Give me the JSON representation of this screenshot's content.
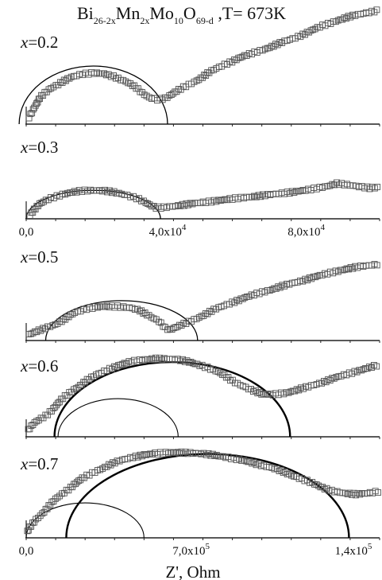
{
  "chart_data": {
    "type": "scatter",
    "title": {
      "parts": [
        {
          "t": "Bi",
          "s": false
        },
        {
          "t": "26-2x",
          "s": true
        },
        {
          "t": "Mn",
          "s": false
        },
        {
          "t": "2x",
          "s": true
        },
        {
          "t": "Mo",
          "s": false
        },
        {
          "t": "10",
          "s": true
        },
        {
          "t": "O",
          "s": false
        },
        {
          "t": "69-d",
          "s": true
        },
        {
          "t": " ,T= 673K",
          "s": false
        }
      ]
    },
    "xlabel": "Z', Ohm",
    "x_ticks": [
      {
        "value": 0,
        "label": "0,0"
      },
      {
        "value": 40000,
        "label": "4,0x10"
      },
      {
        "value": 80000,
        "label": "8,0x10"
      }
    ],
    "x_ticks_bottom": [
      {
        "value": 0,
        "label": "0,0"
      },
      {
        "value": 70000,
        "label": "7,0x10"
      },
      {
        "value": 140000,
        "label": "1,4x10"
      }
    ],
    "tick_exponent": "4",
    "tick_exponent_large": "5",
    "marker": "open-square",
    "panels": [
      {
        "label": "x=0.2",
        "var": "x",
        "val": "=0.2",
        "xlim": [
          0,
          100000
        ],
        "ylim": [
          0,
          42000
        ],
        "arcs": [
          {
            "c": 19000,
            "r": 21000,
            "off": 0,
            "w": 1.3
          }
        ],
        "points": [
          [
            800,
            2500
          ],
          [
            2000,
            6000
          ],
          [
            4000,
            9500
          ],
          [
            7000,
            13000
          ],
          [
            10000,
            15300
          ],
          [
            13000,
            17000
          ],
          [
            16000,
            18100
          ],
          [
            19000,
            18500
          ],
          [
            22000,
            18200
          ],
          [
            25000,
            17200
          ],
          [
            28000,
            15400
          ],
          [
            31000,
            13200
          ],
          [
            33000,
            11300
          ],
          [
            35000,
            9600
          ],
          [
            37000,
            8900
          ],
          [
            39000,
            9300
          ],
          [
            41000,
            10700
          ],
          [
            44000,
            12800
          ],
          [
            48000,
            15700
          ],
          [
            52000,
            18800
          ],
          [
            56000,
            21500
          ],
          [
            60000,
            23800
          ],
          [
            64000,
            25600
          ],
          [
            68000,
            27400
          ],
          [
            72000,
            29300
          ],
          [
            76000,
            31200
          ],
          [
            80000,
            33400
          ],
          [
            84000,
            35600
          ],
          [
            88000,
            37500
          ],
          [
            92000,
            39000
          ],
          [
            96000,
            40200
          ],
          [
            99000,
            41000
          ]
        ]
      },
      {
        "label": "x=0.3",
        "var": "x",
        "val": "=0.3",
        "xlim": [
          0,
          100000
        ],
        "ylim": [
          0,
          42000
        ],
        "arcs": [
          {
            "c": 19000,
            "r": 19000,
            "off": 0,
            "w": 1.3
          }
        ],
        "points": [
          [
            800,
            2500
          ],
          [
            2000,
            6000
          ],
          [
            4000,
            10000
          ],
          [
            7000,
            13800
          ],
          [
            10000,
            16200
          ],
          [
            13000,
            17800
          ],
          [
            16000,
            18700
          ],
          [
            19000,
            19000
          ],
          [
            22000,
            18700
          ],
          [
            25000,
            17800
          ],
          [
            28000,
            16200
          ],
          [
            31000,
            13800
          ],
          [
            33000,
            11600
          ],
          [
            35000,
            9300
          ],
          [
            37000,
            7400
          ],
          [
            39000,
            7600
          ],
          [
            42000,
            8500
          ],
          [
            46000,
            9800
          ],
          [
            50000,
            11000
          ],
          [
            55000,
            12400
          ],
          [
            60000,
            13800
          ],
          [
            65000,
            15000
          ],
          [
            70000,
            16400
          ],
          [
            75000,
            17800
          ],
          [
            80000,
            19400
          ],
          [
            85000,
            21800
          ],
          [
            88000,
            23600
          ],
          [
            91000,
            22800
          ],
          [
            94000,
            21500
          ],
          [
            97000,
            20600
          ],
          [
            99500,
            21000
          ]
        ]
      },
      {
        "label": "x=0.5",
        "var": "x",
        "val": "=0.5",
        "xlim": [
          0,
          100000
        ],
        "ylim": [
          0,
          42000
        ],
        "arcs": [
          {
            "c": 27000,
            "r": 21500,
            "off": 0,
            "w": 1.3
          }
        ],
        "points": [
          [
            500,
            3200
          ],
          [
            2500,
            4600
          ],
          [
            5000,
            6200
          ],
          [
            8000,
            8600
          ],
          [
            11000,
            11800
          ],
          [
            14000,
            15000
          ],
          [
            17000,
            17100
          ],
          [
            20000,
            18100
          ],
          [
            23000,
            18400
          ],
          [
            26000,
            18300
          ],
          [
            29000,
            17700
          ],
          [
            32000,
            16200
          ],
          [
            35000,
            13400
          ],
          [
            37500,
            10400
          ],
          [
            39000,
            6800
          ],
          [
            40500,
            5800
          ],
          [
            43000,
            7500
          ],
          [
            46000,
            10000
          ],
          [
            50000,
            13600
          ],
          [
            54000,
            17200
          ],
          [
            58000,
            20400
          ],
          [
            62000,
            23100
          ],
          [
            66000,
            25600
          ],
          [
            70000,
            27900
          ],
          [
            74000,
            30100
          ],
          [
            78000,
            32300
          ],
          [
            82000,
            34400
          ],
          [
            86000,
            36500
          ],
          [
            90000,
            38300
          ],
          [
            94000,
            39700
          ],
          [
            99000,
            41000
          ]
        ]
      },
      {
        "label": "x=0.6",
        "var": "x",
        "val": "=0.6",
        "xlim": [
          0,
          150000
        ],
        "ylim": [
          0,
          58000
        ],
        "arcs": [
          {
            "c": 62000,
            "r": 50000,
            "off": 0,
            "w": 2.4
          },
          {
            "c": 39000,
            "r": 25500,
            "off": 0,
            "w": 1.1
          }
        ],
        "points": [
          [
            800,
            4500
          ],
          [
            4000,
            9500
          ],
          [
            8000,
            14000
          ],
          [
            12000,
            20000
          ],
          [
            16000,
            26000
          ],
          [
            20000,
            31500
          ],
          [
            25000,
            37000
          ],
          [
            30000,
            41500
          ],
          [
            35000,
            45300
          ],
          [
            40000,
            48200
          ],
          [
            45000,
            50400
          ],
          [
            50000,
            51600
          ],
          [
            55000,
            52200
          ],
          [
            60000,
            52100
          ],
          [
            65000,
            51400
          ],
          [
            70000,
            49800
          ],
          [
            75000,
            47400
          ],
          [
            80000,
            44200
          ],
          [
            85000,
            40200
          ],
          [
            90000,
            35500
          ],
          [
            95000,
            31400
          ],
          [
            100000,
            28700
          ],
          [
            105000,
            28300
          ],
          [
            110000,
            29300
          ],
          [
            115000,
            31300
          ],
          [
            120000,
            33600
          ],
          [
            125000,
            36200
          ],
          [
            130000,
            38800
          ],
          [
            135000,
            41300
          ],
          [
            140000,
            43800
          ],
          [
            145000,
            46000
          ],
          [
            149000,
            47700
          ]
        ]
      },
      {
        "label": "x=0.7",
        "var": "x",
        "val": "=0.7",
        "xlim": [
          0,
          150000
        ],
        "ylim": [
          0,
          66000
        ],
        "arcs": [
          {
            "c": 77000,
            "r": 60000,
            "off": 0,
            "w": 2.4
          },
          {
            "c": 25000,
            "r": 25000,
            "off": 0,
            "w": 1.1
          }
        ],
        "points": [
          [
            800,
            4500
          ],
          [
            4000,
            13000
          ],
          [
            8000,
            20000
          ],
          [
            12000,
            26500
          ],
          [
            16000,
            32500
          ],
          [
            20000,
            38000
          ],
          [
            25000,
            43500
          ],
          [
            30000,
            48000
          ],
          [
            35000,
            52000
          ],
          [
            40000,
            55200
          ],
          [
            45000,
            57700
          ],
          [
            50000,
            59300
          ],
          [
            55000,
            60300
          ],
          [
            60000,
            60900
          ],
          [
            65000,
            61000
          ],
          [
            70000,
            60700
          ],
          [
            75000,
            60100
          ],
          [
            80000,
            59100
          ],
          [
            85000,
            57700
          ],
          [
            90000,
            56000
          ],
          [
            95000,
            54200
          ],
          [
            100000,
            52000
          ],
          [
            105000,
            49500
          ],
          [
            110000,
            46700
          ],
          [
            115000,
            43400
          ],
          [
            120000,
            40000
          ],
          [
            125000,
            36500
          ],
          [
            130000,
            33600
          ],
          [
            135000,
            31800
          ],
          [
            140000,
            31200
          ],
          [
            145000,
            31900
          ],
          [
            149000,
            33100
          ]
        ]
      }
    ]
  }
}
